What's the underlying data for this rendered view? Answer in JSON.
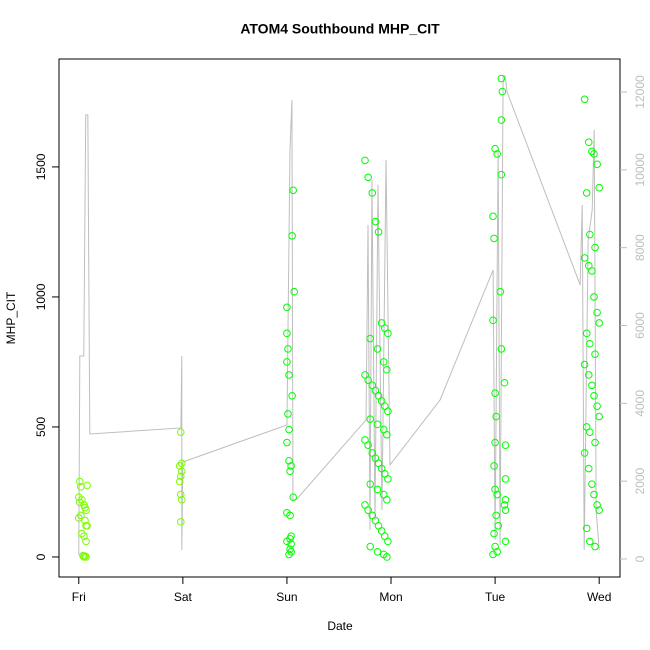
{
  "chart_data": {
    "type": "scatter",
    "title": "ATOM4 Southbound MHP_CIT",
    "x_label": "Date",
    "y_label": "MHP_CIT",
    "xlim": [
      -0.19,
      5.2
    ],
    "ylim": [
      -77,
      1915
    ],
    "y2lim": [
      -463,
      12848
    ],
    "xticks": [
      {
        "value": 0,
        "label": "Fri"
      },
      {
        "value": 1,
        "label": "Sat"
      },
      {
        "value": 2,
        "label": "Sun"
      },
      {
        "value": 3,
        "label": "Mon"
      },
      {
        "value": 4,
        "label": "Tue"
      },
      {
        "value": 5,
        "label": "Wed"
      }
    ],
    "yticks": [
      0,
      500,
      1000,
      1500
    ],
    "y2ticks": [
      0,
      2000,
      4000,
      6000,
      8000,
      10000,
      12000
    ],
    "y2_color": "#bebebe",
    "series": [
      {
        "type": "line",
        "axis": "y2",
        "color": "#bebebe",
        "x": [
          0,
          0.01,
          0.048,
          0.067,
          0.087,
          0.106,
          0.981,
          0.99,
          0.99,
          1.0,
          2.0,
          2.029,
          2.048,
          2.058,
          2.087,
          2.76,
          2.779,
          2.798,
          2.817,
          2.846,
          2.875,
          2.913,
          2.952,
          2.99,
          3.471,
          3.981,
          4.0,
          4.029,
          4.048,
          4.077,
          4.096,
          4.115,
          4.817,
          4.837,
          4.856,
          4.894,
          4.933,
          4.952,
          4.971,
          5.0
        ],
        "values": [
          103,
          5217,
          5217,
          11411,
          11411,
          3212,
          3367,
          5217,
          231,
          2493,
          3444,
          10460,
          11796,
          1516,
          1516,
          3572,
          8584,
          745,
          9740,
          1002,
          9612,
          1259,
          10254,
          2416,
          4086,
          7427,
          488,
          10511,
          360,
          12413,
          12413,
          12002,
          7042,
          9098,
          231,
          8198,
          8969,
          11025,
          1259,
          231
        ]
      },
      {
        "type": "scatter",
        "color": "#7cfc00",
        "x": [
          0.01,
          0.02,
          0.0,
          0.03,
          0.01,
          0.05,
          0.07,
          0.02,
          0.0,
          0.06,
          0.08,
          0.03,
          0.05,
          0.07,
          0.04,
          0.06,
          0.05,
          0.07,
          0.05,
          0.08,
          0.06,
          0.07,
          0.98,
          0.99,
          0.97,
          0.99,
          0.98,
          0.97,
          0.98,
          0.99,
          0.98
        ],
        "values": [
          290,
          270,
          230,
          220,
          210,
          200,
          180,
          160,
          150,
          140,
          120,
          90,
          80,
          60,
          5,
          3,
          2,
          0,
          0,
          275,
          190,
          120,
          480,
          360,
          350,
          330,
          310,
          290,
          240,
          220,
          135
        ]
      },
      {
        "type": "scatter",
        "color": "#00ff00",
        "x": [
          2.06,
          2.05,
          2.07,
          2.0,
          2.0,
          2.01,
          2.0,
          2.02,
          2.05,
          2.01,
          2.02,
          2.0,
          2.02,
          2.04,
          2.03,
          2.06,
          2.0,
          2.03,
          2.04,
          2.03,
          2.0,
          2.04,
          2.03,
          2.04,
          2.02,
          2.75,
          2.78,
          2.82,
          2.85,
          2.88,
          2.91,
          2.94,
          2.97,
          2.8,
          2.87,
          2.93,
          2.96,
          2.75,
          2.78,
          2.82,
          2.85,
          2.88,
          2.91,
          2.94,
          2.97,
          2.8,
          2.87,
          2.93,
          2.96,
          2.75,
          2.78,
          2.82,
          2.85,
          2.88,
          2.91,
          2.94,
          2.97,
          2.8,
          2.87,
          2.93,
          2.96,
          2.75,
          2.78,
          2.82,
          2.85,
          2.88,
          2.91,
          2.94,
          2.97,
          2.8,
          2.87,
          2.93,
          2.96,
          4.06,
          4.07,
          4.06,
          4.0,
          4.02,
          4.06,
          3.98,
          3.99,
          4.05,
          3.98,
          4.06,
          4.09,
          4.0,
          4.01,
          4.0,
          4.1,
          3.99,
          4.1,
          4.0,
          4.02,
          4.1,
          4.09,
          4.1,
          4.01,
          4.03,
          3.99,
          4.1,
          4.0,
          4.02,
          3.98,
          4.86,
          4.9,
          4.93,
          4.95,
          4.98,
          5.0,
          4.88,
          4.91,
          4.96,
          4.86,
          4.9,
          4.93,
          4.95,
          4.98,
          5.0,
          4.88,
          4.91,
          4.96,
          4.86,
          4.9,
          4.93,
          4.95,
          4.98,
          5.0,
          4.88,
          4.91,
          4.96,
          4.86,
          4.9,
          4.93,
          4.95,
          4.98,
          5.0,
          4.88,
          4.91,
          4.96
        ],
        "values": [
          1410,
          1235,
          1020,
          960,
          860,
          800,
          750,
          700,
          620,
          550,
          490,
          440,
          370,
          350,
          330,
          230,
          170,
          160,
          80,
          70,
          60,
          50,
          30,
          20,
          10,
          1525,
          1460,
          1400,
          1290,
          1250,
          900,
          880,
          860,
          840,
          800,
          750,
          720,
          700,
          680,
          660,
          640,
          620,
          600,
          580,
          560,
          530,
          510,
          490,
          470,
          450,
          430,
          400,
          380,
          360,
          340,
          320,
          300,
          280,
          260,
          240,
          220,
          200,
          180,
          160,
          140,
          120,
          100,
          80,
          60,
          40,
          20,
          10,
          0,
          1840,
          1790,
          1680,
          1570,
          1550,
          1470,
          1310,
          1225,
          1020,
          910,
          800,
          670,
          630,
          540,
          440,
          430,
          350,
          300,
          260,
          240,
          220,
          200,
          180,
          160,
          120,
          90,
          60,
          40,
          20,
          10,
          1760,
          1595,
          1560,
          1550,
          1510,
          1420,
          1400,
          1240,
          1190,
          1150,
          1120,
          1100,
          1000,
          940,
          900,
          860,
          820,
          780,
          740,
          700,
          660,
          620,
          580,
          540,
          500,
          480,
          440,
          400,
          340,
          280,
          240,
          200,
          180,
          110,
          60,
          40
        ]
      }
    ]
  }
}
